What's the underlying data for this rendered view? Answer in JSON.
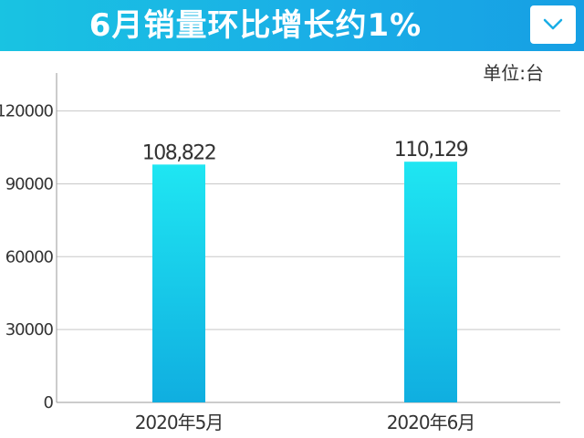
{
  "header": {
    "title": "6月销量环比增长约1%",
    "menu_icon": "chevron-down-icon"
  },
  "unit_label": "单位:台",
  "colors": {
    "banner": "#19b6e6",
    "bar_top": "#1fe6f2",
    "bar_bottom": "#10aee0",
    "grid": "#c8c8c8"
  },
  "chart_data": {
    "type": "bar",
    "title": "6月销量环比增长约1%",
    "categories": [
      "2020年5月",
      "2020年6月"
    ],
    "values": [
      108822,
      110129
    ],
    "value_labels": [
      "108,822",
      "110,129"
    ],
    "yticks": [
      0,
      30000,
      60000,
      90000,
      120000
    ],
    "ytick_labels": [
      "0",
      "30000",
      "60000",
      "90000",
      "120000"
    ],
    "ylim": [
      0,
      130000
    ],
    "unit": "单位:台",
    "grid": true,
    "xlabel": "",
    "ylabel": ""
  }
}
